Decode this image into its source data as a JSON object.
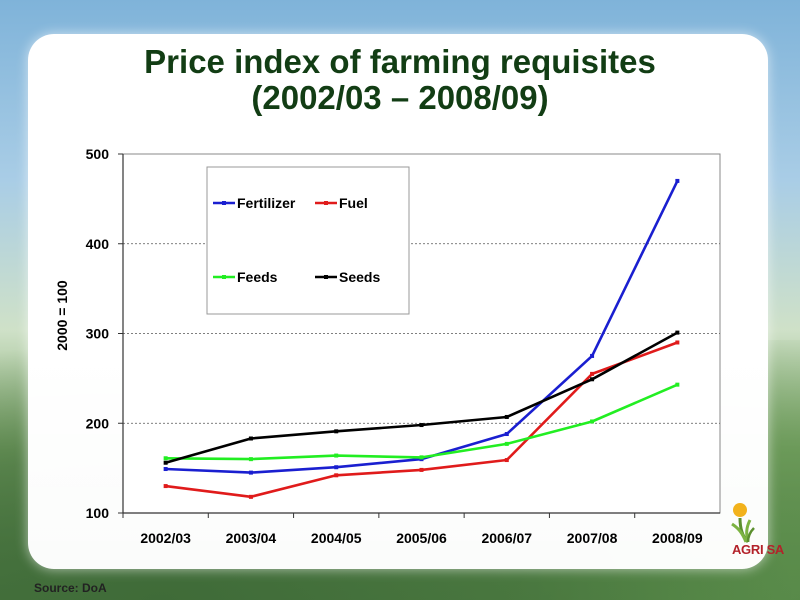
{
  "slide": {
    "title_line1": "Price index of farming requisites",
    "title_line2": "(2002/03 – 2008/09)",
    "source": "Source:  DoA",
    "logo_text": "AGRI SA"
  },
  "chart_data": {
    "type": "line",
    "ylabel": "2000 = 100",
    "ylim": [
      100,
      500
    ],
    "yticks": [
      100,
      200,
      300,
      400,
      500
    ],
    "grid": "horizontal dashed",
    "legend_position": "top-left",
    "categories": [
      "2002/03",
      "2003/04",
      "2004/05",
      "2005/06",
      "2006/07",
      "2007/08",
      "2008/09"
    ],
    "series": [
      {
        "name": "Fertilizer",
        "color": "#1a1fd0",
        "values": [
          149,
          145,
          151,
          160,
          188,
          275,
          470
        ]
      },
      {
        "name": "Fuel",
        "color": "#e01b1b",
        "values": [
          130,
          118,
          142,
          148,
          159,
          255,
          290
        ]
      },
      {
        "name": "Feeds",
        "color": "#22ee22",
        "values": [
          161,
          160,
          164,
          162,
          177,
          202,
          243
        ]
      },
      {
        "name": "Seeds",
        "color": "#000000",
        "values": [
          156,
          183,
          191,
          198,
          207,
          249,
          301
        ]
      }
    ]
  }
}
